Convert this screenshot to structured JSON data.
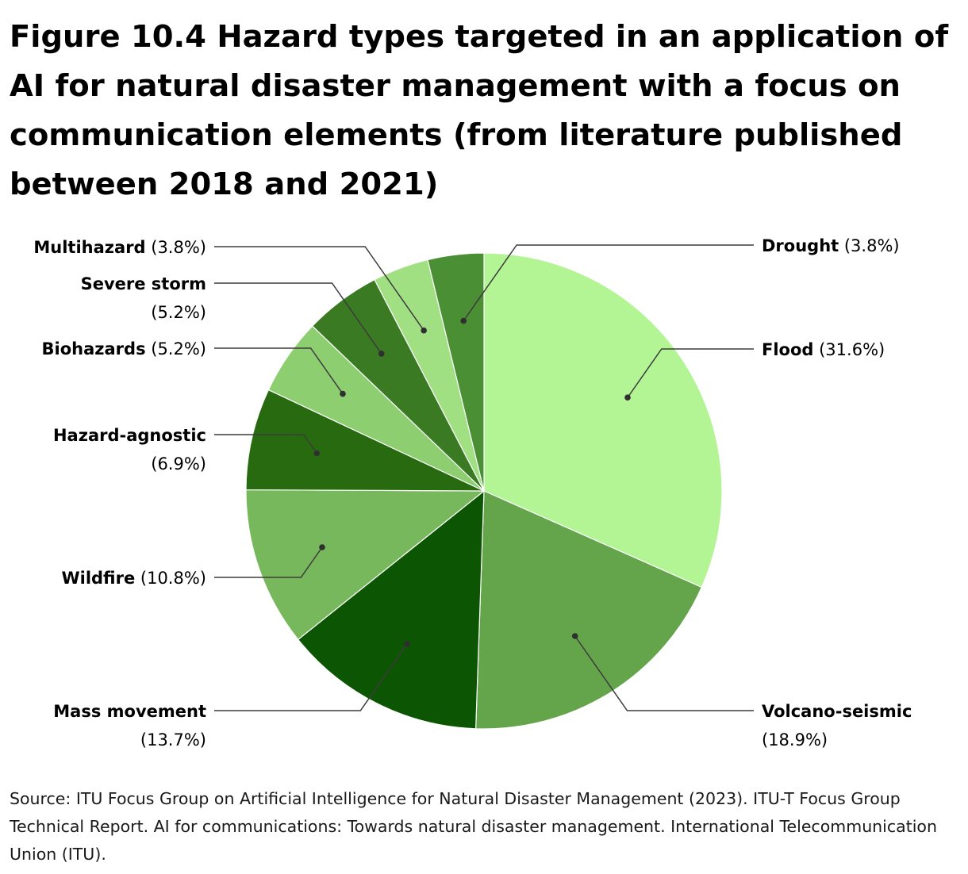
{
  "title": "Figure 10.4 Hazard types targeted in an application of AI for natural disaster management with a focus on communication elements (from literature published between 2018 and 2021)",
  "source": "Source: ITU Focus Group on Artificial Intelligence for Natural Disaster Management (2023). ITU-T Focus Group Technical Report. AI for communications: Towards natural disaster management. International Telecommunication Union (ITU).",
  "chart_data": {
    "type": "pie",
    "start": "12 o'clock",
    "direction": "clockwise",
    "slices": [
      {
        "name": "Flood",
        "value": 31.6,
        "value_label": "(31.6%)",
        "color": "#b3f595",
        "side": "right",
        "lines": [
          "Flood (31.6%)"
        ]
      },
      {
        "name": "Volcano-seismic",
        "value": 18.9,
        "value_label": "(18.9%)",
        "color": "#64a44a",
        "side": "right",
        "lines": [
          "Volcano-seismic",
          "(18.9%)"
        ]
      },
      {
        "name": "Mass movement",
        "value": 13.7,
        "value_label": "(13.7%)",
        "color": "#0c5502",
        "side": "left",
        "lines": [
          "Mass movement",
          "(13.7%)"
        ]
      },
      {
        "name": "Wildfire",
        "value": 10.8,
        "value_label": "(10.8%)",
        "color": "#78b85c",
        "side": "left",
        "lines": [
          "Wildfire (10.8%)"
        ]
      },
      {
        "name": "Hazard-agnostic",
        "value": 6.9,
        "value_label": "(6.9%)",
        "color": "#276a0f",
        "side": "left",
        "lines": [
          "Hazard-agnostic",
          "(6.9%)"
        ]
      },
      {
        "name": "Biohazards",
        "value": 5.2,
        "value_label": "(5.2%)",
        "color": "#8dce71",
        "side": "left",
        "lines": [
          "Biohazards (5.2%)"
        ]
      },
      {
        "name": "Severe storm",
        "value": 5.2,
        "value_label": "(5.2%)",
        "color": "#3a7a22",
        "side": "left",
        "lines": [
          "Severe storm",
          "(5.2%)"
        ]
      },
      {
        "name": "Multihazard",
        "value": 3.8,
        "value_label": "(3.8%)",
        "color": "#a0e083",
        "side": "left",
        "lines": [
          "Multihazard (3.8%)"
        ]
      },
      {
        "name": "Drought",
        "value": 3.8,
        "value_label": "(3.8%)",
        "color": "#4b8f34",
        "side": "right",
        "lines": [
          "Drought (3.8%)"
        ]
      }
    ]
  }
}
